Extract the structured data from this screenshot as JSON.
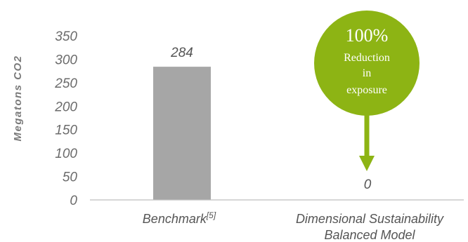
{
  "chart_data": {
    "type": "bar",
    "categories": [
      "Benchmark",
      "Dimensional Sustainability Balanced Model"
    ],
    "category_lines": [
      [
        "Benchmark"
      ],
      [
        "Dimensional Sustainability",
        "Balanced Model"
      ]
    ],
    "category_superscripts": [
      "[5]",
      ""
    ],
    "values": [
      284,
      0
    ],
    "data_labels": [
      "284",
      "0"
    ],
    "ylabel": "Megatons CO2",
    "xlabel": "",
    "title": "",
    "ylim": [
      0,
      350
    ],
    "yticks": [
      0,
      50,
      100,
      150,
      200,
      250,
      300,
      350
    ],
    "grid": false,
    "legend": "none",
    "bar_color": "#a6a6a6",
    "axis_color": "#bfbfbf",
    "annotation": {
      "percent": "100%",
      "lines": [
        "Reduction",
        "in",
        "exposure"
      ],
      "target_category": 1,
      "color": "#8db414",
      "arrow_color": "#8db414"
    }
  }
}
